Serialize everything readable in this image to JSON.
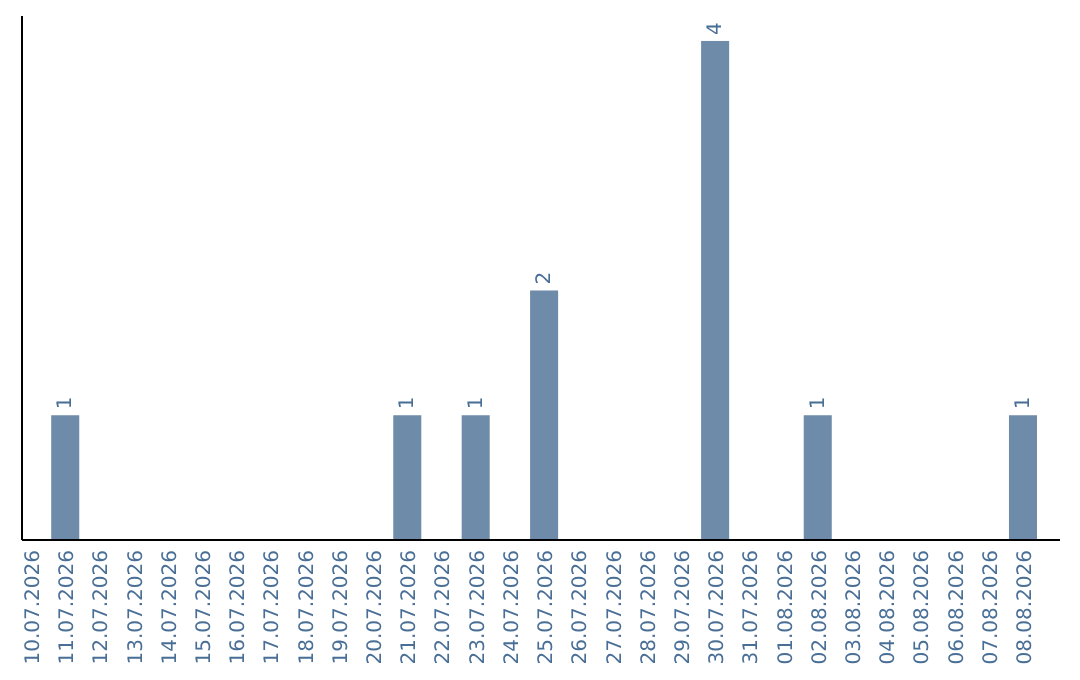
{
  "chart_data": {
    "type": "bar",
    "categories": [
      "10.07.2026",
      "11.07.2026",
      "12.07.2026",
      "13.07.2026",
      "14.07.2026",
      "15.07.2026",
      "16.07.2026",
      "17.07.2026",
      "18.07.2026",
      "19.07.2026",
      "20.07.2026",
      "21.07.2026",
      "22.07.2026",
      "23.07.2026",
      "24.07.2026",
      "25.07.2026",
      "26.07.2026",
      "27.07.2026",
      "28.07.2026",
      "29.07.2026",
      "30.07.2026",
      "31.07.2026",
      "01.08.2026",
      "02.08.2026",
      "03.08.2026",
      "04.08.2026",
      "05.08.2026",
      "06.08.2026",
      "07.08.2026",
      "08.08.2026"
    ],
    "values": [
      0,
      1,
      0,
      0,
      0,
      0,
      0,
      0,
      0,
      0,
      0,
      1,
      0,
      1,
      0,
      2,
      0,
      0,
      0,
      0,
      4,
      0,
      0,
      1,
      0,
      0,
      0,
      0,
      0,
      1
    ],
    "value_labels": [
      null,
      "1",
      null,
      null,
      null,
      null,
      null,
      null,
      null,
      null,
      null,
      "1",
      null,
      "1",
      null,
      "2",
      null,
      null,
      null,
      null,
      "4",
      null,
      null,
      "1",
      null,
      null,
      null,
      null,
      null,
      "1"
    ],
    "color": "#6e8caa",
    "ylim": [
      0,
      4.2
    ],
    "tick_labels": "x"
  }
}
